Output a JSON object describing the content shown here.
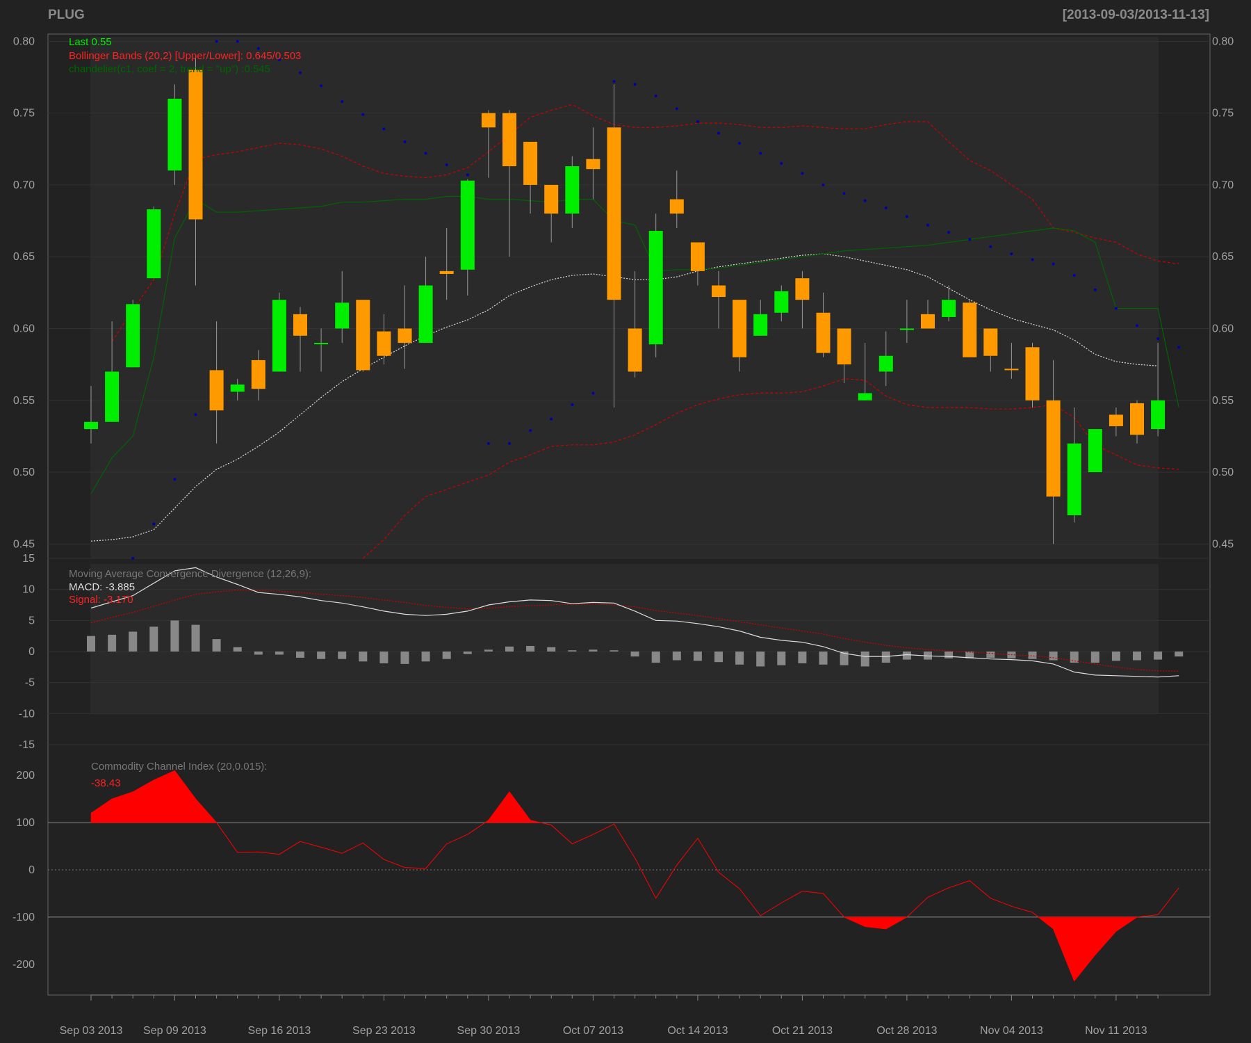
{
  "header": {
    "symbol": "PLUG",
    "date_range": "[2013-09-03/2013-11-13]"
  },
  "colors": {
    "background": "#222222",
    "panel_bg": "#2a2a2a",
    "up_candle": "#00ee00",
    "down_candle": "#ff9900",
    "bollinger": "#cc0000",
    "bollinger_ma": "#dddddd",
    "chandelier": "#006400",
    "sar": "#0000aa",
    "macd_line": "#dddddd",
    "signal_line": "#cc0000",
    "histogram": "#888888",
    "cci": "#ff0000"
  },
  "legend": {
    "last": "Last 0.55",
    "bbands": "Bollinger Bands (20,2) [Upper/Lower]: 0.645/0.503",
    "chandelier": "chandelier(c1, coef = 2, trend = \"up\") :0.545",
    "macd_title": "Moving Average Convergence Divergence (12,26,9):",
    "macd_value": "MACD: -3.885",
    "signal_value": "Signal: -3.170",
    "cci_title": "Commodity Channel Index (20,0.015):",
    "cci_value": "-38.43"
  },
  "chart_data": [
    {
      "type": "candlestick",
      "panel": "price",
      "ylim": [
        0.44,
        0.805
      ],
      "y_ticks": [
        "0.80",
        "0.75",
        "0.70",
        "0.65",
        "0.60",
        "0.55",
        "0.50",
        "0.45"
      ],
      "x_tick_labels": [
        "Sep 03 2013",
        "Sep 09 2013",
        "Sep 16 2013",
        "Sep 23 2013",
        "Sep 30 2013",
        "Oct 07 2013",
        "Oct 14 2013",
        "Oct 21 2013",
        "Oct 28 2013",
        "Nov 04 2013",
        "Nov 11 2013"
      ],
      "x_tick_index": [
        0,
        4,
        9,
        14,
        19,
        24,
        29,
        34,
        39,
        44,
        49
      ],
      "dates": [
        "2013-09-03",
        "2013-09-04",
        "2013-09-05",
        "2013-09-06",
        "2013-09-09",
        "2013-09-10",
        "2013-09-11",
        "2013-09-12",
        "2013-09-13",
        "2013-09-16",
        "2013-09-17",
        "2013-09-18",
        "2013-09-19",
        "2013-09-20",
        "2013-09-23",
        "2013-09-24",
        "2013-09-25",
        "2013-09-26",
        "2013-09-27",
        "2013-09-30",
        "2013-10-01",
        "2013-10-02",
        "2013-10-03",
        "2013-10-04",
        "2013-10-07",
        "2013-10-08",
        "2013-10-09",
        "2013-10-10",
        "2013-10-11",
        "2013-10-14",
        "2013-10-15",
        "2013-10-16",
        "2013-10-17",
        "2013-10-18",
        "2013-10-21",
        "2013-10-22",
        "2013-10-23",
        "2013-10-24",
        "2013-10-25",
        "2013-10-28",
        "2013-10-29",
        "2013-10-30",
        "2013-10-31",
        "2013-11-01",
        "2013-11-04",
        "2013-11-05",
        "2013-11-06",
        "2013-11-07",
        "2013-11-08",
        "2013-11-11",
        "2013-11-12"
      ],
      "ohlc": [
        [
          0.53,
          0.56,
          0.52,
          0.535
        ],
        [
          0.535,
          0.605,
          0.535,
          0.57
        ],
        [
          0.573,
          0.62,
          0.573,
          0.617
        ],
        [
          0.635,
          0.685,
          0.635,
          0.683
        ],
        [
          0.71,
          0.77,
          0.7,
          0.76
        ],
        [
          0.78,
          0.79,
          0.63,
          0.676
        ],
        [
          0.571,
          0.605,
          0.52,
          0.543
        ],
        [
          0.556,
          0.565,
          0.55,
          0.561
        ],
        [
          0.578,
          0.585,
          0.55,
          0.558
        ],
        [
          0.57,
          0.625,
          0.57,
          0.62
        ],
        [
          0.61,
          0.615,
          0.57,
          0.595
        ],
        [
          0.59,
          0.6,
          0.57,
          0.59
        ],
        [
          0.6,
          0.64,
          0.59,
          0.618
        ],
        [
          0.62,
          0.62,
          0.57,
          0.571
        ],
        [
          0.598,
          0.61,
          0.575,
          0.581
        ],
        [
          0.6,
          0.63,
          0.572,
          0.59
        ],
        [
          0.59,
          0.65,
          0.59,
          0.63
        ],
        [
          0.64,
          0.67,
          0.62,
          0.638
        ],
        [
          0.641,
          0.704,
          0.623,
          0.703
        ],
        [
          0.75,
          0.752,
          0.705,
          0.74
        ],
        [
          0.75,
          0.752,
          0.65,
          0.713
        ],
        [
          0.73,
          0.73,
          0.68,
          0.7
        ],
        [
          0.7,
          0.7,
          0.66,
          0.68
        ],
        [
          0.68,
          0.72,
          0.67,
          0.713
        ],
        [
          0.718,
          0.74,
          0.69,
          0.711
        ],
        [
          0.74,
          0.77,
          0.545,
          0.62
        ],
        [
          0.6,
          0.64,
          0.566,
          0.57
        ],
        [
          0.589,
          0.68,
          0.58,
          0.668
        ],
        [
          0.69,
          0.71,
          0.67,
          0.68
        ],
        [
          0.66,
          0.66,
          0.63,
          0.64
        ],
        [
          0.63,
          0.64,
          0.6,
          0.622
        ],
        [
          0.62,
          0.62,
          0.57,
          0.58
        ],
        [
          0.595,
          0.62,
          0.595,
          0.61
        ],
        [
          0.611,
          0.63,
          0.605,
          0.626
        ],
        [
          0.635,
          0.64,
          0.6,
          0.62
        ],
        [
          0.611,
          0.625,
          0.58,
          0.583
        ],
        [
          0.6,
          0.6,
          0.562,
          0.575
        ],
        [
          0.55,
          0.59,
          0.55,
          0.555
        ],
        [
          0.57,
          0.598,
          0.56,
          0.581
        ],
        [
          0.6,
          0.62,
          0.59,
          0.6
        ],
        [
          0.61,
          0.62,
          0.6,
          0.6
        ],
        [
          0.608,
          0.63,
          0.605,
          0.62
        ],
        [
          0.618,
          0.62,
          0.58,
          0.58
        ],
        [
          0.6,
          0.6,
          0.57,
          0.581
        ],
        [
          0.572,
          0.59,
          0.565,
          0.571
        ],
        [
          0.587,
          0.59,
          0.545,
          0.55
        ],
        [
          0.55,
          0.578,
          0.45,
          0.483
        ],
        [
          0.47,
          0.545,
          0.465,
          0.52
        ],
        [
          0.5,
          0.53,
          0.5,
          0.53
        ],
        [
          0.54,
          0.545,
          0.525,
          0.532
        ],
        [
          0.548,
          0.55,
          0.52,
          0.526
        ],
        [
          0.53,
          0.59,
          0.525,
          0.55
        ]
      ],
      "bbands_upper": [
        null,
        0.591,
        0.613,
        0.634,
        0.68,
        0.718,
        0.721,
        0.723,
        0.726,
        0.729,
        0.728,
        0.725,
        0.72,
        0.713,
        0.708,
        0.706,
        0.705,
        0.707,
        0.712,
        0.723,
        0.735,
        0.747,
        0.752,
        0.756,
        0.748,
        0.742,
        0.74,
        0.74,
        0.741,
        0.743,
        0.743,
        0.742,
        0.74,
        0.74,
        0.741,
        0.74,
        0.739,
        0.739,
        0.742,
        0.744,
        0.744,
        0.73,
        0.717,
        0.71,
        0.7,
        0.69,
        0.67,
        0.667,
        0.663,
        0.66,
        0.652,
        0.647,
        0.645
      ],
      "bbands_ma": [
        0.452,
        0.453,
        0.455,
        0.46,
        0.475,
        0.49,
        0.502,
        0.509,
        0.518,
        0.528,
        0.54,
        0.552,
        0.563,
        0.572,
        0.58,
        0.588,
        0.595,
        0.601,
        0.606,
        0.613,
        0.623,
        0.629,
        0.634,
        0.637,
        0.638,
        0.636,
        0.634,
        0.634,
        0.636,
        0.64,
        0.643,
        0.645,
        0.647,
        0.649,
        0.651,
        0.652,
        0.65,
        0.647,
        0.644,
        0.641,
        0.636,
        0.628,
        0.62,
        0.613,
        0.607,
        0.603,
        0.599,
        0.592,
        0.582,
        0.577,
        0.575,
        0.574
      ],
      "bbands_lower": [
        null,
        null,
        null,
        null,
        null,
        null,
        null,
        null,
        null,
        null,
        null,
        null,
        null,
        0.437,
        0.453,
        0.47,
        0.483,
        0.488,
        0.493,
        0.498,
        0.507,
        0.512,
        0.518,
        0.519,
        0.519,
        0.521,
        0.526,
        0.533,
        0.541,
        0.547,
        0.551,
        0.554,
        0.555,
        0.555,
        0.556,
        0.56,
        0.565,
        0.564,
        0.553,
        0.547,
        0.545,
        0.545,
        0.545,
        0.544,
        0.544,
        0.545,
        0.547,
        0.538,
        0.519,
        0.512,
        0.505,
        0.503,
        0.502
      ],
      "chandelier": [
        0.485,
        0.51,
        0.525,
        0.58,
        0.663,
        0.69,
        0.681,
        0.681,
        0.682,
        0.683,
        0.684,
        0.685,
        0.688,
        0.688,
        0.689,
        0.69,
        0.69,
        0.692,
        0.692,
        0.69,
        0.69,
        0.689,
        0.688,
        0.69,
        0.69,
        0.675,
        0.672,
        0.64,
        0.641,
        0.641,
        0.642,
        0.644,
        0.646,
        0.648,
        0.65,
        0.652,
        0.654,
        0.655,
        0.656,
        0.657,
        0.658,
        0.66,
        0.662,
        0.664,
        0.666,
        0.668,
        0.67,
        0.668,
        0.66,
        0.614,
        0.614,
        0.614,
        0.545
      ],
      "sar": [
        null,
        null,
        0.44,
        0.464,
        0.495,
        0.54,
        0.8,
        0.8,
        0.795,
        0.787,
        0.778,
        0.769,
        0.758,
        0.749,
        0.739,
        0.73,
        0.722,
        0.714,
        0.707,
        0.52,
        0.52,
        0.529,
        0.537,
        0.547,
        0.555,
        0.772,
        0.77,
        0.762,
        0.753,
        0.744,
        0.736,
        0.729,
        0.722,
        0.715,
        0.708,
        0.7,
        0.694,
        0.689,
        0.684,
        0.678,
        0.672,
        0.667,
        0.662,
        0.657,
        0.652,
        0.648,
        0.645,
        0.637,
        0.627,
        0.614,
        0.602,
        0.593,
        0.587
      ]
    },
    {
      "type": "line",
      "panel": "macd",
      "ylim": [
        -15,
        15
      ],
      "y_ticks": [
        "15",
        "10",
        "5",
        "0",
        "-5",
        "-10",
        "-15"
      ],
      "macd": [
        7.0,
        8.0,
        9.0,
        11.0,
        13.0,
        13.5,
        12.0,
        10.8,
        9.5,
        9.2,
        8.8,
        8.2,
        7.8,
        7.2,
        6.5,
        6.0,
        5.8,
        6.0,
        6.5,
        7.5,
        8.0,
        8.3,
        8.2,
        7.7,
        7.9,
        7.8,
        6.5,
        5.0,
        4.9,
        4.5,
        4.0,
        3.3,
        2.3,
        1.8,
        1.5,
        0.8,
        -0.3,
        -0.8,
        -0.8,
        -0.5,
        -0.7,
        -0.8,
        -1.0,
        -1.2,
        -1.3,
        -1.5,
        -2.0,
        -3.3,
        -3.8,
        -3.9,
        -4.0,
        -4.1,
        -3.9
      ],
      "signal": [
        4.6,
        5.5,
        6.3,
        7.3,
        8.3,
        9.2,
        9.6,
        9.9,
        9.8,
        9.7,
        9.5,
        9.2,
        9.0,
        8.7,
        8.3,
        7.9,
        7.4,
        7.1,
        6.9,
        7.0,
        7.2,
        7.4,
        7.5,
        7.6,
        7.7,
        7.5,
        7.2,
        6.6,
        6.2,
        5.8,
        5.3,
        4.8,
        4.3,
        3.8,
        3.3,
        2.8,
        2.1,
        1.5,
        1.0,
        0.6,
        0.3,
        0.1,
        -0.1,
        -0.3,
        -0.5,
        -0.7,
        -1.0,
        -1.5,
        -2.0,
        -2.5,
        -2.9,
        -3.1,
        -3.17
      ],
      "histogram": [
        2.5,
        2.7,
        3.2,
        4.0,
        5.0,
        4.3,
        2.0,
        0.7,
        -0.5,
        -0.5,
        -1.0,
        -1.2,
        -1.2,
        -1.6,
        -1.9,
        -2.0,
        -1.6,
        -1.2,
        -0.4,
        0.3,
        0.8,
        0.9,
        0.7,
        0.2,
        0.3,
        0.2,
        -0.8,
        -1.8,
        -1.4,
        -1.5,
        -1.7,
        -2.1,
        -2.4,
        -2.2,
        -1.9,
        -2.1,
        -2.2,
        -2.4,
        -1.8,
        -1.3,
        -1.3,
        -1.1,
        -1.1,
        -1.0,
        -1.1,
        -1.2,
        -1.4,
        -1.8,
        -1.8,
        -1.5,
        -1.4,
        -1.3,
        -0.8
      ]
    },
    {
      "type": "area",
      "panel": "cci",
      "ylim": [
        -265,
        265
      ],
      "y_ticks": [
        "200",
        "100",
        "0",
        "-100",
        "-200"
      ],
      "bands": [
        100,
        0,
        -100
      ],
      "cci": [
        120,
        150,
        165,
        190,
        210,
        150,
        100,
        37,
        38,
        33,
        60,
        48,
        35,
        57,
        22,
        5,
        3,
        55,
        75,
        105,
        165,
        105,
        95,
        55,
        75,
        97,
        25,
        -60,
        10,
        67,
        -5,
        -40,
        -97,
        -70,
        -45,
        -50,
        -100,
        -120,
        -125,
        -100,
        -58,
        -38,
        -23,
        -60,
        -77,
        -90,
        -125,
        -235,
        -180,
        -130,
        -100,
        -95,
        -38
      ]
    }
  ]
}
